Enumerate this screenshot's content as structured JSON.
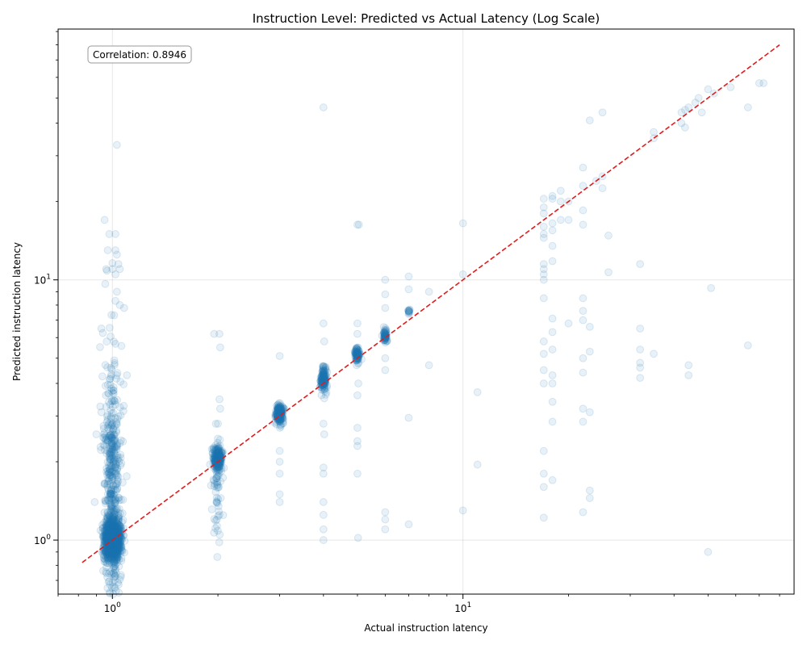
{
  "chart_data": {
    "type": "scatter",
    "title": "Instruction Level: Predicted vs Actual Latency (Log Scale)",
    "xlabel": "Actual instruction latency",
    "ylabel": "Predicted instruction latency",
    "x_scale": "log",
    "y_scale": "log",
    "xlim": [
      0.7,
      88
    ],
    "ylim": [
      0.62,
      92
    ],
    "grid": true,
    "x_ticks": [
      {
        "value": 1,
        "label": "10^0"
      },
      {
        "value": 10,
        "label": "10^1"
      }
    ],
    "y_ticks": [
      {
        "value": 1,
        "label": "10^0"
      },
      {
        "value": 10,
        "label": "10^1"
      }
    ],
    "annotation": "Correlation: 0.8946",
    "reference_line": {
      "style": "dashed",
      "color": "#e31a1c",
      "from": [
        0.82,
        0.82
      ],
      "to": [
        80,
        80
      ]
    },
    "marker_color": "#1f77b4",
    "marker_alpha": 0.1,
    "clusters": [
      {
        "x": 1,
        "center": 1.0,
        "n": 1400,
        "spread_x": 0.025,
        "spread_y": 0.08
      },
      {
        "x": 1,
        "center": 1.6,
        "n": 500,
        "spread_x": 0.03,
        "spread_y": 0.55
      },
      {
        "x": 2,
        "center": 2.05,
        "n": 220,
        "spread_x": 0.015,
        "spread_y": 0.05
      },
      {
        "x": 2,
        "center": 1.5,
        "n": 60,
        "spread_x": 0.015,
        "spread_y": 0.25
      },
      {
        "x": 3,
        "center": 3.05,
        "n": 180,
        "spread_x": 0.012,
        "spread_y": 0.04
      },
      {
        "x": 4,
        "center": 4.15,
        "n": 140,
        "spread_x": 0.01,
        "spread_y": 0.06
      },
      {
        "x": 5,
        "center": 5.15,
        "n": 90,
        "spread_x": 0.008,
        "spread_y": 0.03
      },
      {
        "x": 6,
        "center": 6.1,
        "n": 60,
        "spread_x": 0.006,
        "spread_y": 0.03
      },
      {
        "x": 7,
        "center": 7.6,
        "n": 12,
        "spread_x": 0.003,
        "spread_y": 0.01
      }
    ],
    "points": [
      [
        0.95,
        17
      ],
      [
        0.98,
        15
      ],
      [
        1.02,
        15
      ],
      [
        0.97,
        13
      ],
      [
        1.02,
        13
      ],
      [
        1.03,
        12.5
      ],
      [
        1.0,
        11.6
      ],
      [
        1.04,
        11.5
      ],
      [
        0.96,
        11
      ],
      [
        1.0,
        11
      ],
      [
        1.05,
        11
      ],
      [
        1.02,
        10.5
      ],
      [
        1.03,
        33
      ],
      [
        1.03,
        9.0
      ],
      [
        1.02,
        8.3
      ],
      [
        1.05,
        8.0
      ],
      [
        1.08,
        7.8
      ],
      [
        1.1,
        4.3
      ],
      [
        0.93,
        6.5
      ],
      [
        0.93,
        3.1
      ],
      [
        0.9,
        2.55
      ],
      [
        0.89,
        1.4
      ],
      [
        1.95,
        6.2
      ],
      [
        2.02,
        6.2
      ],
      [
        2.03,
        5.5
      ],
      [
        2.03,
        3.2
      ],
      [
        2.0,
        2.8
      ],
      [
        3.0,
        5.1
      ],
      [
        3.0,
        2.2
      ],
      [
        3.0,
        2.0
      ],
      [
        3.0,
        1.8
      ],
      [
        3.0,
        1.5
      ],
      [
        3.0,
        1.4
      ],
      [
        4.0,
        46
      ],
      [
        4.0,
        6.8
      ],
      [
        4.02,
        5.8
      ],
      [
        4.0,
        2.8
      ],
      [
        4.02,
        2.55
      ],
      [
        4.0,
        1.9
      ],
      [
        4.0,
        1.8
      ],
      [
        4.0,
        1.4
      ],
      [
        4.0,
        1.25
      ],
      [
        4.0,
        1.1
      ],
      [
        4.0,
        1.0
      ],
      [
        5.0,
        16.3
      ],
      [
        5.05,
        16.3
      ],
      [
        5.0,
        6.8
      ],
      [
        5.0,
        6.2
      ],
      [
        5.03,
        4.0
      ],
      [
        5.0,
        3.6
      ],
      [
        5.0,
        2.7
      ],
      [
        5.0,
        2.4
      ],
      [
        5.0,
        2.3
      ],
      [
        5.0,
        1.8
      ],
      [
        5.02,
        1.02
      ],
      [
        6.0,
        10
      ],
      [
        6.0,
        8.8
      ],
      [
        6.0,
        7.8
      ],
      [
        6.0,
        5.0
      ],
      [
        6.0,
        4.5
      ],
      [
        6.0,
        1.28
      ],
      [
        6.0,
        1.2
      ],
      [
        6.0,
        1.1
      ],
      [
        7.0,
        10.3
      ],
      [
        7.0,
        9.2
      ],
      [
        7.0,
        2.95
      ],
      [
        7.0,
        1.15
      ],
      [
        8.0,
        9.0
      ],
      [
        8.0,
        4.7
      ],
      [
        10.0,
        16.5
      ],
      [
        10.0,
        10.5
      ],
      [
        10.0,
        1.3
      ],
      [
        11.0,
        3.7
      ],
      [
        11.0,
        1.95
      ],
      [
        17,
        20.5
      ],
      [
        17,
        19
      ],
      [
        17,
        18
      ],
      [
        17,
        16
      ],
      [
        17,
        15
      ],
      [
        17,
        14.5
      ],
      [
        17,
        11.5
      ],
      [
        17,
        11
      ],
      [
        17,
        10.5
      ],
      [
        17,
        10
      ],
      [
        17,
        8.5
      ],
      [
        17,
        5.8
      ],
      [
        17,
        5.2
      ],
      [
        17,
        4.5
      ],
      [
        17,
        4.0
      ],
      [
        17,
        2.2
      ],
      [
        17,
        1.8
      ],
      [
        17,
        1.6
      ],
      [
        17,
        1.22
      ],
      [
        18,
        21
      ],
      [
        18,
        20.5
      ],
      [
        18,
        16.5
      ],
      [
        18,
        15.5
      ],
      [
        18,
        13.5
      ],
      [
        18,
        11.8
      ],
      [
        18,
        7.1
      ],
      [
        18,
        6.3
      ],
      [
        18,
        5.4
      ],
      [
        18,
        4.3
      ],
      [
        18,
        4.0
      ],
      [
        18,
        3.4
      ],
      [
        18,
        2.85
      ],
      [
        18,
        1.7
      ],
      [
        19,
        22
      ],
      [
        19,
        20
      ],
      [
        19,
        17
      ],
      [
        20,
        20
      ],
      [
        20,
        17
      ],
      [
        20,
        6.8
      ],
      [
        22,
        27
      ],
      [
        22,
        23
      ],
      [
        22,
        18.5
      ],
      [
        22,
        16.3
      ],
      [
        22,
        8.5
      ],
      [
        22,
        7.6
      ],
      [
        22,
        7.0
      ],
      [
        22,
        5.0
      ],
      [
        22,
        4.4
      ],
      [
        22,
        3.2
      ],
      [
        22,
        2.85
      ],
      [
        22,
        1.28
      ],
      [
        23,
        41
      ],
      [
        23,
        6.6
      ],
      [
        23,
        5.3
      ],
      [
        23,
        3.1
      ],
      [
        23,
        1.55
      ],
      [
        23,
        1.45
      ],
      [
        24,
        24
      ],
      [
        25,
        44
      ],
      [
        25,
        25
      ],
      [
        25,
        22.5
      ],
      [
        26,
        14.8
      ],
      [
        26,
        10.7
      ],
      [
        32,
        11.5
      ],
      [
        32,
        6.5
      ],
      [
        32,
        5.4
      ],
      [
        32,
        4.8
      ],
      [
        32,
        4.6
      ],
      [
        32,
        4.2
      ],
      [
        35,
        37
      ],
      [
        35,
        35
      ],
      [
        35,
        5.2
      ],
      [
        42,
        44
      ],
      [
        42,
        40
      ],
      [
        43,
        45
      ],
      [
        43,
        38.5
      ],
      [
        44,
        46
      ],
      [
        44,
        4.7
      ],
      [
        44,
        4.3
      ],
      [
        46,
        48
      ],
      [
        47,
        50
      ],
      [
        48,
        44
      ],
      [
        50,
        54
      ],
      [
        50,
        0.9
      ],
      [
        51,
        9.3
      ],
      [
        52,
        52
      ],
      [
        58,
        55
      ],
      [
        65,
        46
      ],
      [
        65,
        5.6
      ],
      [
        70,
        57
      ],
      [
        72,
        57
      ]
    ]
  }
}
